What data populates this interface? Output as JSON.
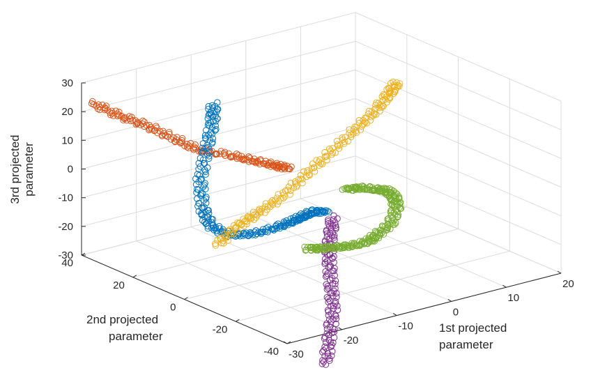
{
  "chart_data": {
    "type": "scatter",
    "projection": "3d",
    "marker": "open circle",
    "grid": true,
    "legend": "none",
    "xlabel": [
      "1st projected",
      "parameter"
    ],
    "ylabel": [
      "2nd projected",
      "parameter"
    ],
    "zlabel": [
      "3rd projected",
      "parameter"
    ],
    "xlim": [
      -30,
      20
    ],
    "ylim": [
      -40,
      40
    ],
    "zlim": [
      -30,
      30
    ],
    "xticks": [
      "-30",
      "-20",
      "-10",
      "0",
      "10",
      "20"
    ],
    "yticks": [
      "-40",
      "-20",
      "0",
      "20",
      "40"
    ],
    "zticks": [
      "-30",
      "-20",
      "-10",
      "0",
      "10",
      "20",
      "30"
    ],
    "series": [
      {
        "color": "#D95319",
        "points": [
          [
            -28,
            40,
            22
          ],
          [
            -26,
            34,
            19
          ],
          [
            -24,
            28,
            17
          ],
          [
            -22,
            22,
            14
          ],
          [
            -20,
            16,
            11
          ],
          [
            -17,
            10,
            10
          ],
          [
            -15,
            5,
            9
          ],
          [
            -13,
            1,
            8
          ],
          [
            -12,
            -2,
            7.5
          ]
        ]
      },
      {
        "color": "#0072BD",
        "points": [
          [
            -13,
            25,
            20
          ],
          [
            -15,
            21,
            16
          ],
          [
            -18,
            17,
            10
          ],
          [
            -21,
            13,
            2
          ],
          [
            -22,
            10,
            -6
          ],
          [
            -22,
            7,
            -11
          ],
          [
            -20,
            4,
            -14
          ],
          [
            -17,
            1,
            -14
          ],
          [
            -14,
            -2,
            -12
          ],
          [
            -12,
            -4,
            -10
          ],
          [
            -11,
            -6,
            -8
          ],
          [
            -10,
            -8,
            -6
          ],
          [
            -9,
            -10,
            -6
          ]
        ]
      },
      {
        "color": "#EDB120",
        "points": [
          [
            -24,
            0,
            -14
          ],
          [
            -20,
            1,
            -10
          ],
          [
            -16,
            2,
            -8
          ],
          [
            -11,
            3,
            -5
          ],
          [
            -6,
            4,
            0
          ],
          [
            -1,
            5,
            5
          ],
          [
            4,
            6,
            10
          ],
          [
            8,
            7,
            14
          ],
          [
            11,
            8,
            18
          ],
          [
            13,
            9,
            21
          ]
        ]
      },
      {
        "color": "#7E2F8E",
        "points": [
          [
            -8,
            -11,
            -8
          ],
          [
            -10,
            -14,
            -13
          ],
          [
            -12,
            -18,
            -18
          ],
          [
            -14,
            -23,
            -24
          ],
          [
            -16,
            -28,
            -30
          ],
          [
            -19,
            -33,
            -36
          ],
          [
            -22,
            -38,
            -42
          ]
        ]
      },
      {
        "color": "#77AC30",
        "points": [
          [
            -13,
            -12,
            -16
          ],
          [
            -11,
            -12,
            -17
          ],
          [
            -8,
            -12,
            -18
          ],
          [
            -5,
            -12,
            -19
          ],
          [
            -2,
            -12,
            -19
          ],
          [
            0,
            -11,
            -18
          ],
          [
            3,
            -10,
            -16
          ],
          [
            5,
            -8,
            -12
          ],
          [
            6,
            -5,
            -10
          ],
          [
            6,
            -2,
            -9
          ],
          [
            5,
            0,
            -9
          ],
          [
            3,
            2,
            -8
          ],
          [
            1,
            3,
            -8
          ]
        ]
      }
    ]
  }
}
